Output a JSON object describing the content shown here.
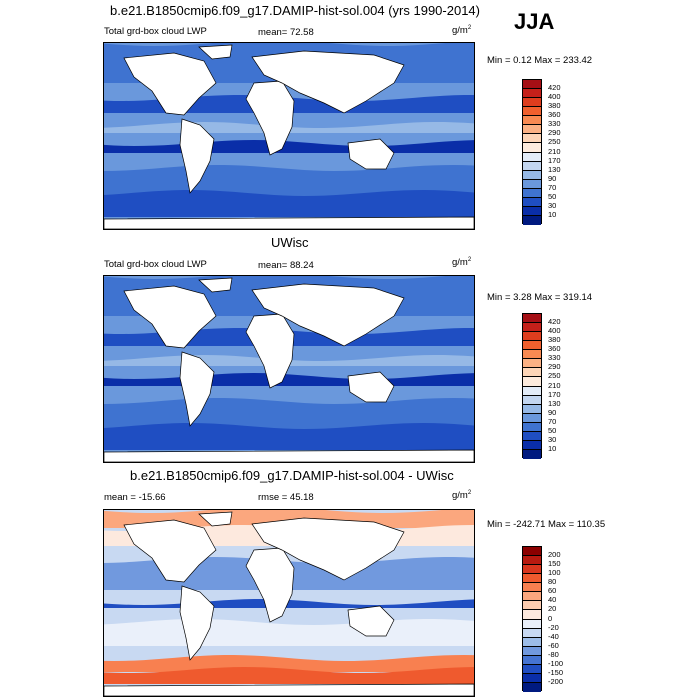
{
  "season": "JJA",
  "panels": [
    {
      "title": "b.e21.B1850cmip6.f09_g17.DAMIP-hist-sol.004 (yrs 1990-2014)",
      "left_label": "Total grd-box cloud LWP",
      "stat1": "mean=  72.58",
      "units_base": "g/m",
      "units_sup": "2",
      "minmax": "Min =   0.12 Max = 233.42",
      "field": "abs"
    },
    {
      "title": "UWisc",
      "left_label": "Total grd-box cloud LWP",
      "stat1": "mean=  88.24",
      "units_base": "g/m",
      "units_sup": "2",
      "minmax": "Min =   3.28 Max = 319.14",
      "field": "abs"
    },
    {
      "title": "b.e21.B1850cmip6.f09_g17.DAMIP-hist-sol.004 - UWisc",
      "left_label": "mean = -15.66",
      "stat1": "rmse =  45.18",
      "units_base": "g/m",
      "units_sup": "2",
      "minmax": "Min = -242.71 Max = 110.35",
      "field": "diff"
    }
  ],
  "colorbars": {
    "abs": {
      "labels": [
        "420",
        "400",
        "380",
        "360",
        "330",
        "290",
        "250",
        "210",
        "170",
        "130",
        "90",
        "70",
        "50",
        "30",
        "10"
      ],
      "colors": [
        "#a50f15",
        "#c4201a",
        "#de3d1e",
        "#f0602e",
        "#f88a52",
        "#fbb184",
        "#fdd5b7",
        "#fdebdd",
        "#e3ecf8",
        "#c3d6f0",
        "#96b9e6",
        "#6a98dc",
        "#3f73d0",
        "#1f4ec2",
        "#0a2ea8",
        "#001a80"
      ]
    },
    "diff": {
      "labels": [
        "200",
        "150",
        "100",
        "80",
        "60",
        "40",
        "20",
        "0",
        "-20",
        "-40",
        "-60",
        "-80",
        "-100",
        "-150",
        "-200"
      ],
      "colors": [
        "#8b0000",
        "#b81a10",
        "#d9361e",
        "#ef5a2e",
        "#f88050",
        "#fba77e",
        "#fdcdb0",
        "#fde9de",
        "#eaf0fa",
        "#c8d9f2",
        "#9dbde8",
        "#7199de",
        "#4574d2",
        "#204ec2",
        "#0a2ea8",
        "#001a80"
      ]
    }
  }
}
